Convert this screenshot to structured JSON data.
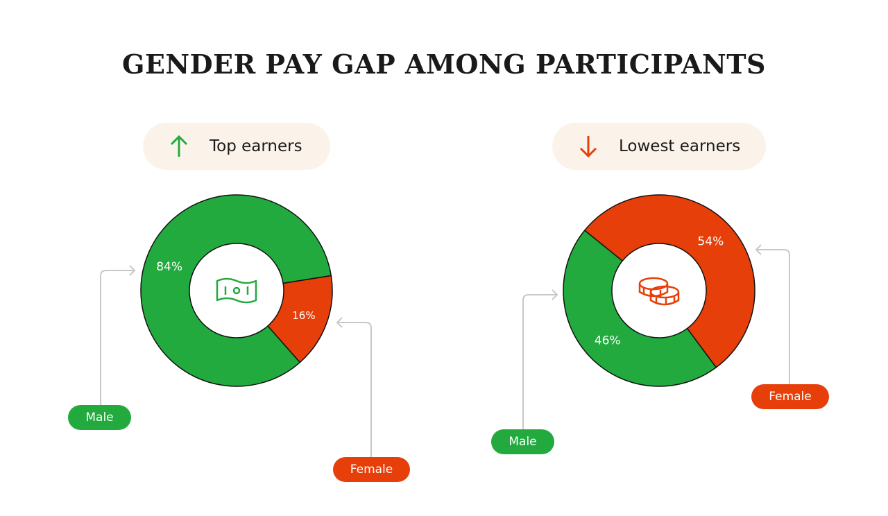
{
  "title": "GENDER PAY GAP AMONG PARTICIPANTS",
  "colors": {
    "male": "#22aa3e",
    "female": "#e63f09",
    "pill_bg": "#fbf3ea",
    "connector": "#c8c8c8"
  },
  "chart_data": [
    {
      "type": "pie",
      "variant": "donut",
      "title": "Top earners",
      "header_icon": "arrow-up-icon",
      "center_icon": "banknote-icon",
      "categories": [
        "Male",
        "Female"
      ],
      "values": [
        84,
        16
      ],
      "labels": [
        "84%",
        "16%"
      ]
    },
    {
      "type": "pie",
      "variant": "donut",
      "title": "Lowest earners",
      "header_icon": "arrow-down-icon",
      "center_icon": "coins-icon",
      "categories": [
        "Male",
        "Female"
      ],
      "values": [
        46,
        54
      ],
      "labels": [
        "46%",
        "54%"
      ]
    }
  ]
}
